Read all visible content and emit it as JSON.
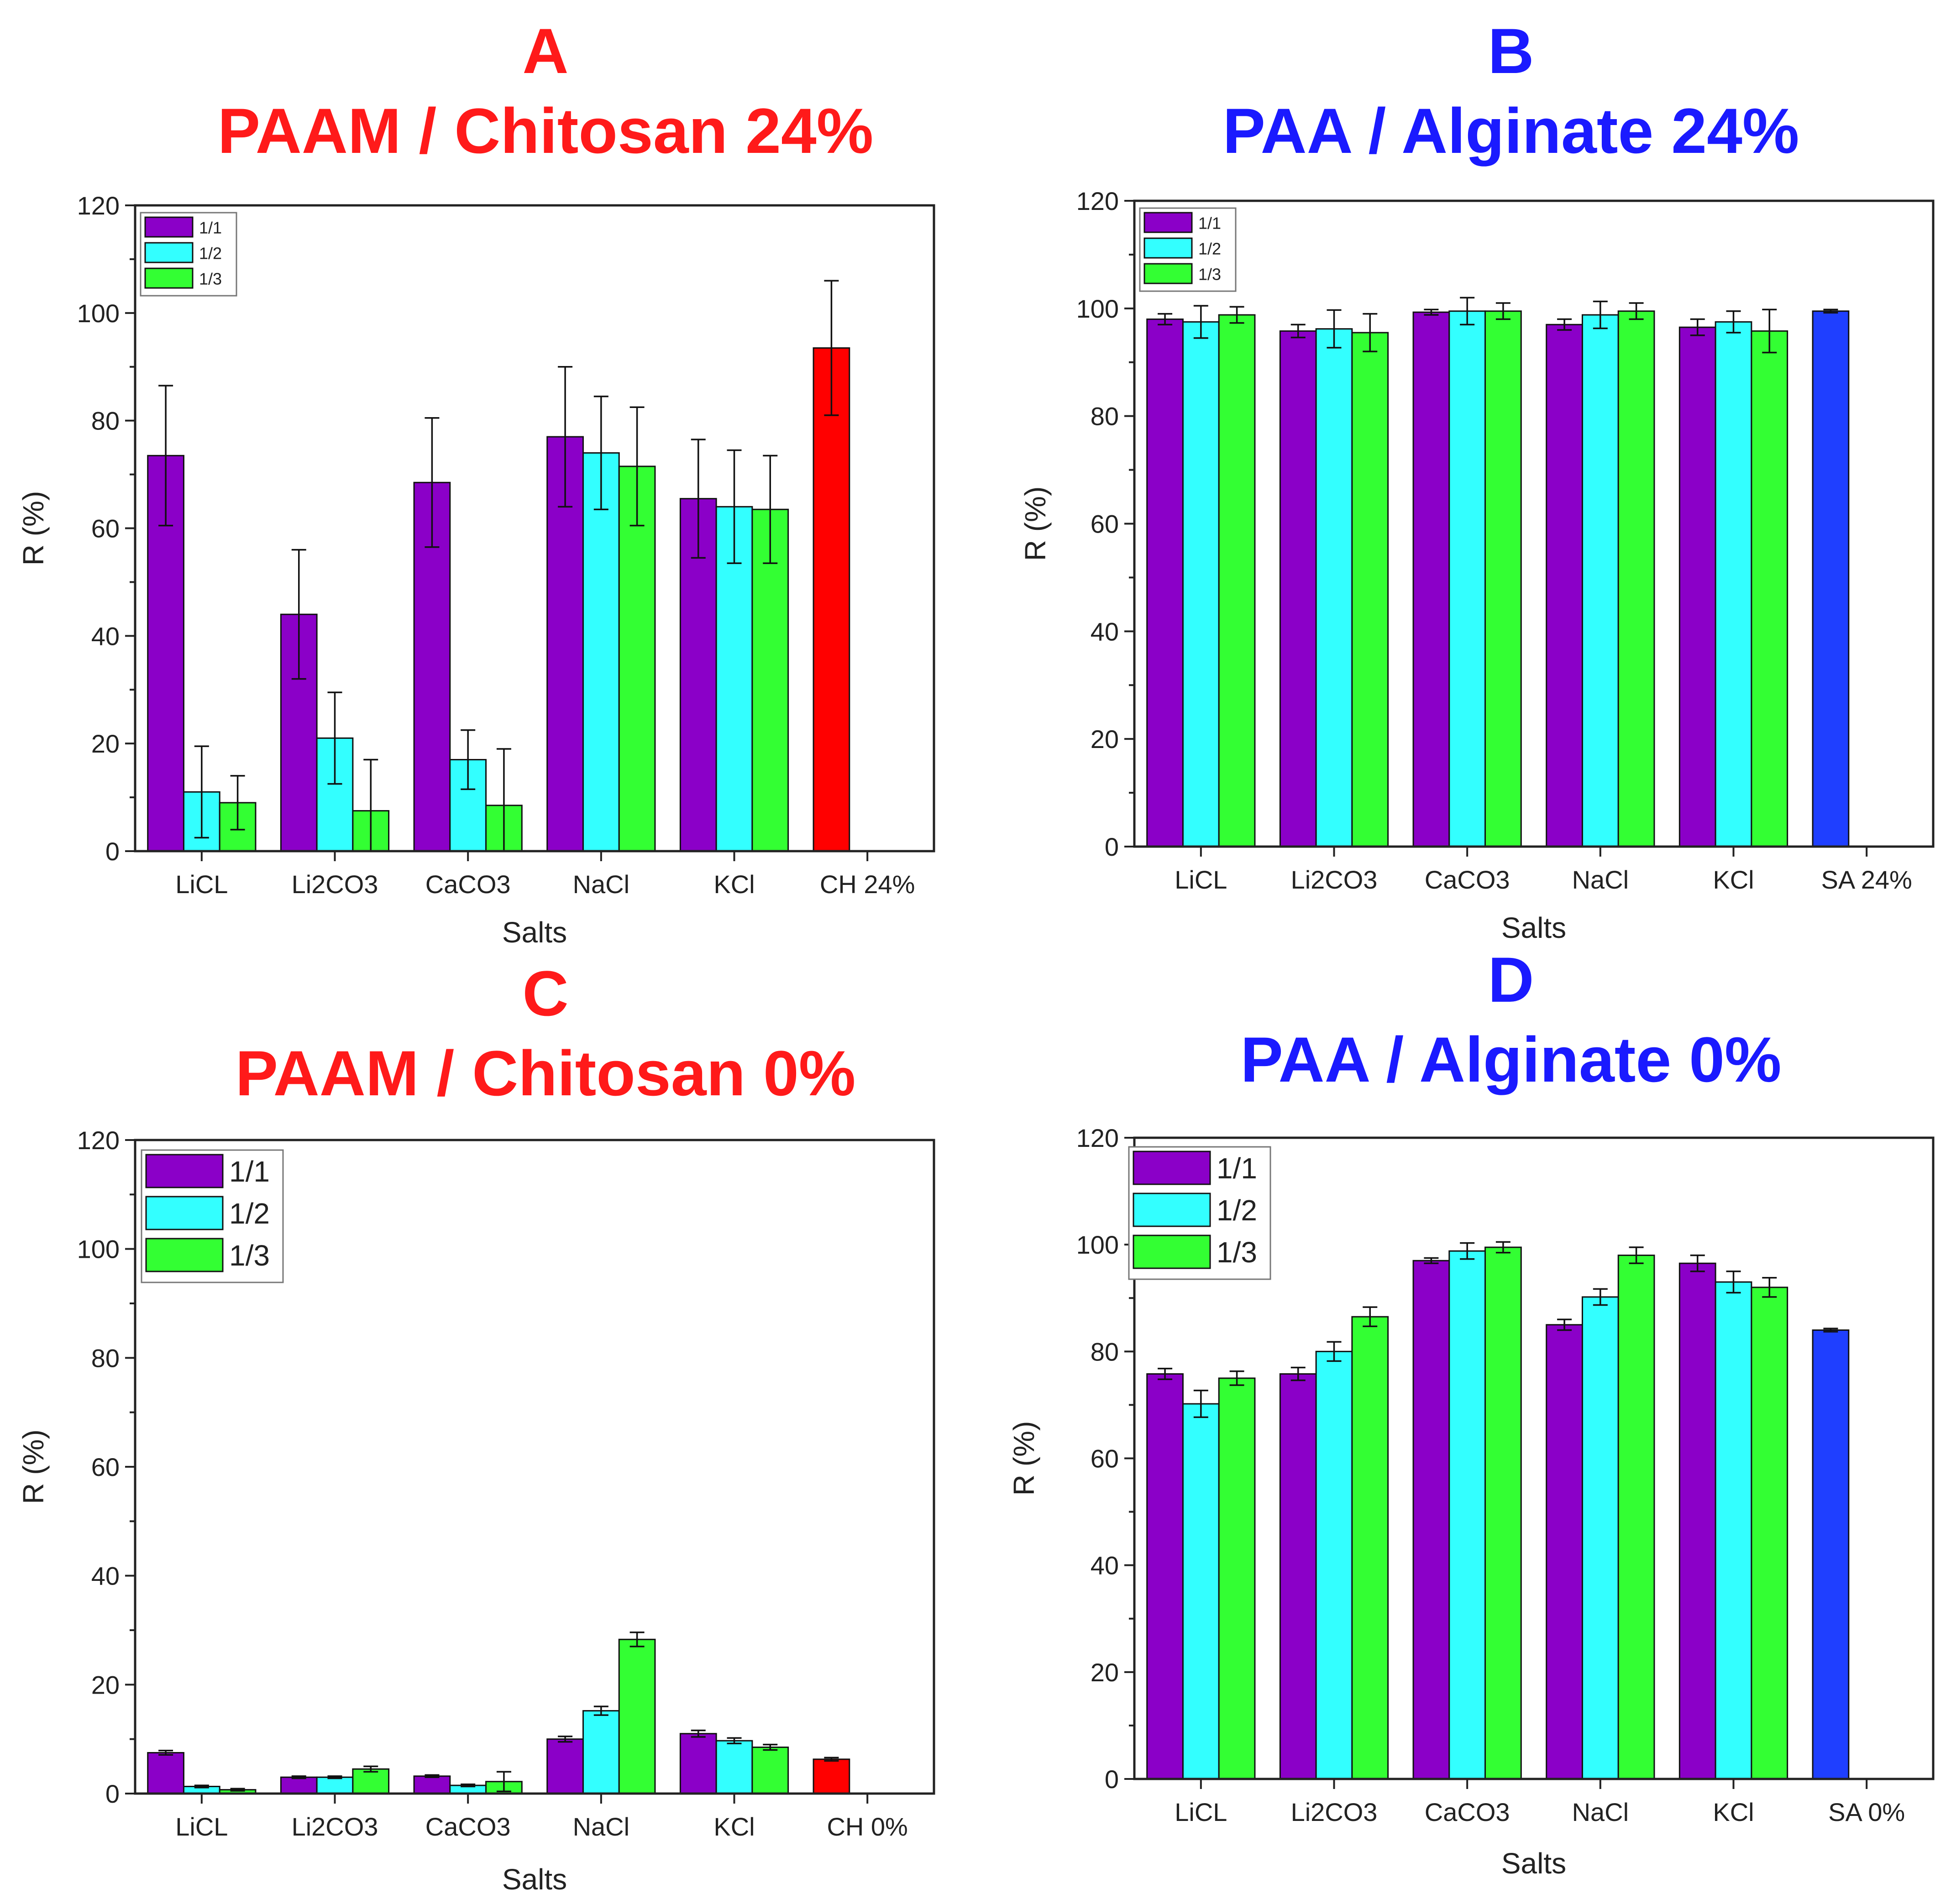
{
  "colors": {
    "s1": "#8b00c8",
    "s2": "#33ffff",
    "s3": "#33ff33",
    "red_title": "#ff1a1a",
    "blue_title": "#1a1aff",
    "control_red": "#ff0000",
    "control_blue": "#1f3fff"
  },
  "chart_data": [
    {
      "panel": "A",
      "letter": "A",
      "title": "PAAM / Chitosan 24%",
      "title_color": "red",
      "type": "bar",
      "xlabel": "Salts",
      "ylabel": "R (%)",
      "ylim": [
        0,
        120
      ],
      "yticks": [
        0,
        20,
        40,
        60,
        80,
        100,
        120
      ],
      "categories": [
        "LiCL",
        "Li2CO3",
        "CaCO3",
        "NaCl",
        "KCl",
        "CH 24%"
      ],
      "legend_position": "top-left",
      "legend_size": "small",
      "series": [
        {
          "name": "1/1",
          "color": "s1",
          "values": [
            73.5,
            44,
            68.5,
            77,
            65.5,
            null
          ],
          "errors": [
            13,
            12,
            12,
            13,
            11,
            null
          ]
        },
        {
          "name": "1/2",
          "color": "s2",
          "values": [
            11,
            21,
            17,
            74,
            64,
            null
          ],
          "errors": [
            8.5,
            8.5,
            5.5,
            10.5,
            10.5,
            null
          ]
        },
        {
          "name": "1/3",
          "color": "s3",
          "values": [
            9,
            7.5,
            8.5,
            71.5,
            63.5,
            null
          ],
          "errors": [
            5,
            9.5,
            10.5,
            11,
            10,
            null
          ]
        }
      ],
      "control": {
        "category": "CH 24%",
        "value": 93.5,
        "error": 12.5,
        "color": "control_red"
      }
    },
    {
      "panel": "B",
      "letter": "B",
      "title": "PAA / Alginate 24%",
      "title_color": "blue",
      "type": "bar",
      "xlabel": "Salts",
      "ylabel": "R (%)",
      "ylim": [
        0,
        120
      ],
      "yticks": [
        0,
        20,
        40,
        60,
        80,
        100,
        120
      ],
      "categories": [
        "LiCL",
        "Li2CO3",
        "CaCO3",
        "NaCl",
        "KCl",
        "SA 24%"
      ],
      "legend_position": "top-left",
      "legend_size": "small",
      "series": [
        {
          "name": "1/1",
          "color": "s1",
          "values": [
            98,
            95.8,
            99.3,
            97,
            96.5,
            null
          ],
          "errors": [
            1,
            1.2,
            0.5,
            1,
            1.5,
            null
          ]
        },
        {
          "name": "1/2",
          "color": "s2",
          "values": [
            97.5,
            96.2,
            99.5,
            98.8,
            97.5,
            null
          ],
          "errors": [
            3,
            3.5,
            2.5,
            2.5,
            2,
            null
          ]
        },
        {
          "name": "1/3",
          "color": "s3",
          "values": [
            98.8,
            95.5,
            99.5,
            99.5,
            95.8,
            null
          ],
          "errors": [
            1.5,
            3.5,
            1.5,
            1.5,
            4,
            null
          ]
        }
      ],
      "control": {
        "category": "SA 24%",
        "value": 99.5,
        "error": 0.3,
        "color": "control_blue"
      }
    },
    {
      "panel": "C",
      "letter": "C",
      "title": "PAAM / Chitosan 0%",
      "title_color": "red",
      "type": "bar",
      "xlabel": "Salts",
      "ylabel": "R (%)",
      "ylim": [
        0,
        120
      ],
      "yticks": [
        0,
        20,
        40,
        60,
        80,
        100,
        120
      ],
      "categories": [
        "LiCL",
        "Li2CO3",
        "CaCO3",
        "NaCl",
        "KCl",
        "CH 0%"
      ],
      "legend_position": "top-left",
      "legend_size": "large",
      "series": [
        {
          "name": "1/1",
          "color": "s1",
          "values": [
            7.5,
            3,
            3.2,
            10,
            11,
            null
          ],
          "errors": [
            0.4,
            0.2,
            0.2,
            0.5,
            0.6,
            null
          ]
        },
        {
          "name": "1/2",
          "color": "s2",
          "values": [
            1.3,
            3,
            1.5,
            15.2,
            9.7,
            null
          ],
          "errors": [
            0.2,
            0.2,
            0.2,
            0.8,
            0.5,
            null
          ]
        },
        {
          "name": "1/3",
          "color": "s3",
          "values": [
            0.7,
            4.5,
            2.2,
            28.3,
            8.5,
            null
          ],
          "errors": [
            0.2,
            0.5,
            1.8,
            1.3,
            0.5,
            null
          ]
        }
      ],
      "control": {
        "category": "CH 0%",
        "value": 6.3,
        "error": 0.3,
        "color": "control_red"
      }
    },
    {
      "panel": "D",
      "letter": "D",
      "title": "PAA / Alginate 0%",
      "title_color": "blue",
      "type": "bar",
      "xlabel": "Salts",
      "ylabel": "R (%)",
      "ylim": [
        0,
        120
      ],
      "yticks": [
        0,
        20,
        40,
        60,
        80,
        100,
        120
      ],
      "categories": [
        "LiCL",
        "Li2CO3",
        "CaCO3",
        "NaCl",
        "KCl",
        "SA 0%"
      ],
      "legend_position": "top-left",
      "legend_size": "large",
      "series": [
        {
          "name": "1/1",
          "color": "s1",
          "values": [
            75.8,
            75.8,
            97,
            85,
            96.5,
            null
          ],
          "errors": [
            1,
            1.2,
            0.5,
            1,
            1.5,
            null
          ]
        },
        {
          "name": "1/2",
          "color": "s2",
          "values": [
            70.2,
            80,
            98.8,
            90.2,
            93,
            null
          ],
          "errors": [
            2.5,
            1.8,
            1.5,
            1.5,
            2,
            null
          ]
        },
        {
          "name": "1/3",
          "color": "s3",
          "values": [
            75,
            86.5,
            99.5,
            98,
            92,
            null
          ],
          "errors": [
            1.3,
            1.8,
            1,
            1.5,
            1.8,
            null
          ]
        }
      ],
      "control": {
        "category": "SA 0%",
        "value": 84,
        "error": 0.3,
        "color": "control_blue"
      }
    }
  ]
}
